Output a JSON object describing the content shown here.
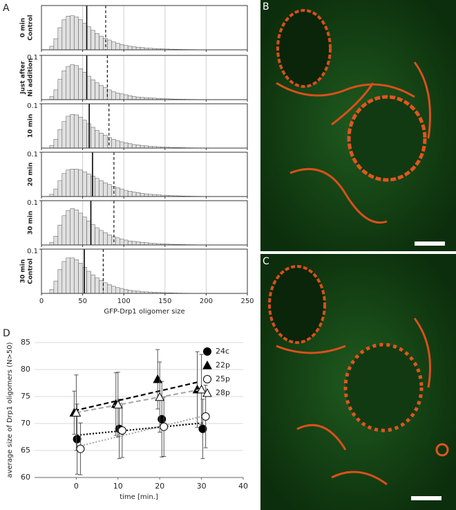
{
  "chart_data": [
    {
      "type": "histogram",
      "panel": "A",
      "ylabel": [
        "0 min",
        "Control"
      ],
      "bins": [
        10,
        15,
        20,
        25,
        30,
        35,
        40,
        45,
        50,
        55,
        60,
        65,
        70,
        75,
        80,
        85,
        90,
        95,
        100,
        105,
        110,
        115,
        120,
        125,
        130,
        135,
        140,
        145,
        150,
        155,
        160,
        165,
        170,
        175,
        180,
        185,
        190,
        195,
        200
      ],
      "counts": [
        0.008,
        0.025,
        0.05,
        0.068,
        0.076,
        0.077,
        0.074,
        0.068,
        0.06,
        0.052,
        0.044,
        0.037,
        0.031,
        0.026,
        0.022,
        0.018,
        0.015,
        0.012,
        0.01,
        0.008,
        0.007,
        0.006,
        0.005,
        0.004,
        0.0035,
        0.003,
        0.0025,
        0.002,
        0.0017,
        0.0014,
        0.0012,
        0.001,
        0.0008,
        0.0007,
        0.0006,
        0.0005,
        0.0004,
        0.0003
      ],
      "color": "#e0e0e0",
      "xlim": [
        0,
        250
      ],
      "xticks": [
        0,
        50,
        100,
        150,
        200,
        250
      ],
      "ylim": [
        0,
        0.1
      ],
      "grid": true,
      "vlines": [
        {
          "value": 55,
          "style": "solid"
        },
        {
          "value": 78,
          "style": "dashed"
        }
      ]
    },
    {
      "type": "histogram",
      "ylabel": [
        "Just after",
        "Ni addition"
      ],
      "bins": [
        10,
        15,
        20,
        25,
        30,
        35,
        40,
        45,
        50,
        55,
        60,
        65,
        70,
        75,
        80,
        85,
        90,
        95,
        100,
        105,
        110,
        115,
        120,
        125,
        130,
        135,
        140,
        145,
        150,
        155,
        160,
        165,
        170,
        175,
        180,
        185,
        190,
        195,
        200
      ],
      "counts": [
        0.007,
        0.022,
        0.046,
        0.065,
        0.075,
        0.079,
        0.077,
        0.07,
        0.062,
        0.053,
        0.045,
        0.038,
        0.032,
        0.027,
        0.022,
        0.018,
        0.015,
        0.013,
        0.011,
        0.009,
        0.007,
        0.006,
        0.005,
        0.0045,
        0.004,
        0.0033,
        0.0027,
        0.0022,
        0.0018,
        0.0015,
        0.0012,
        0.001,
        0.0009,
        0.0007,
        0.0006,
        0.0005,
        0.0004,
        0.0003
      ],
      "color": "#e0e0e0",
      "xlim": [
        0,
        250
      ],
      "xticks": [
        0,
        50,
        100,
        150,
        200,
        250
      ],
      "ylim": [
        0,
        0.1
      ],
      "yticks": [
        0.1
      ],
      "grid": true,
      "vlines": [
        {
          "value": 55,
          "style": "solid"
        },
        {
          "value": 80,
          "style": "dashed"
        }
      ]
    },
    {
      "type": "histogram",
      "ylabel": [
        "10 min"
      ],
      "bins": [
        10,
        15,
        20,
        25,
        30,
        35,
        40,
        45,
        50,
        55,
        60,
        65,
        70,
        75,
        80,
        85,
        90,
        95,
        100,
        105,
        110,
        115,
        120,
        125,
        130,
        135,
        140,
        145,
        150,
        155,
        160,
        165,
        170,
        175,
        180,
        185,
        190,
        195,
        200
      ],
      "counts": [
        0.006,
        0.02,
        0.042,
        0.06,
        0.072,
        0.076,
        0.075,
        0.07,
        0.063,
        0.055,
        0.047,
        0.04,
        0.034,
        0.029,
        0.024,
        0.02,
        0.017,
        0.014,
        0.012,
        0.01,
        0.008,
        0.007,
        0.006,
        0.005,
        0.004,
        0.0035,
        0.003,
        0.0025,
        0.002,
        0.0016,
        0.0013,
        0.0011,
        0.0009,
        0.0007,
        0.0006,
        0.0005,
        0.0004,
        0.0003
      ],
      "color": "#e0e0e0",
      "xlim": [
        0,
        250
      ],
      "xticks": [
        0,
        50,
        100,
        150,
        200,
        250
      ],
      "ylim": [
        0,
        0.1
      ],
      "yticks": [
        0.1
      ],
      "grid": true,
      "vlines": [
        {
          "value": 58,
          "style": "solid"
        },
        {
          "value": 82,
          "style": "dashed"
        }
      ]
    },
    {
      "type": "histogram",
      "ylabel": [
        "20 min"
      ],
      "bins": [
        10,
        15,
        20,
        25,
        30,
        35,
        40,
        45,
        50,
        55,
        60,
        65,
        70,
        75,
        80,
        85,
        90,
        95,
        100,
        105,
        110,
        115,
        120,
        125,
        130,
        135,
        140,
        145,
        150,
        155,
        160,
        165,
        170,
        175,
        180,
        185,
        190,
        195,
        200
      ],
      "counts": [
        0.005,
        0.017,
        0.036,
        0.052,
        0.06,
        0.062,
        0.062,
        0.06,
        0.056,
        0.051,
        0.046,
        0.041,
        0.036,
        0.031,
        0.027,
        0.023,
        0.02,
        0.017,
        0.014,
        0.012,
        0.01,
        0.009,
        0.007,
        0.006,
        0.005,
        0.0045,
        0.0038,
        0.003,
        0.0025,
        0.002,
        0.0017,
        0.0014,
        0.0011,
        0.0009,
        0.0007,
        0.0006,
        0.0005,
        0.0004
      ],
      "color": "#e0e0e0",
      "xlim": [
        0,
        250
      ],
      "xticks": [
        0,
        50,
        100,
        150,
        200,
        250
      ],
      "ylim": [
        0,
        0.1
      ],
      "yticks": [
        0.1
      ],
      "grid": true,
      "vlines": [
        {
          "value": 62,
          "style": "solid"
        },
        {
          "value": 88,
          "style": "dashed"
        }
      ]
    },
    {
      "type": "histogram",
      "ylabel": [
        "30 min"
      ],
      "bins": [
        10,
        15,
        20,
        25,
        30,
        35,
        40,
        45,
        50,
        55,
        60,
        65,
        70,
        75,
        80,
        85,
        90,
        95,
        100,
        105,
        110,
        115,
        120,
        125,
        130,
        135,
        140,
        145,
        150,
        155,
        160,
        165,
        170,
        175,
        180,
        185,
        190,
        195,
        200
      ],
      "counts": [
        0.006,
        0.02,
        0.045,
        0.066,
        0.078,
        0.082,
        0.079,
        0.072,
        0.063,
        0.054,
        0.046,
        0.039,
        0.033,
        0.028,
        0.023,
        0.019,
        0.016,
        0.013,
        0.011,
        0.009,
        0.008,
        0.007,
        0.006,
        0.005,
        0.004,
        0.0035,
        0.003,
        0.0025,
        0.002,
        0.0016,
        0.0013,
        0.0011,
        0.0009,
        0.0007,
        0.0006,
        0.0005,
        0.0004,
        0.0003
      ],
      "color": "#e0e0e0",
      "xlim": [
        0,
        250
      ],
      "xticks": [
        0,
        50,
        100,
        150,
        200,
        250
      ],
      "ylim": [
        0,
        0.1
      ],
      "yticks": [
        0.1
      ],
      "grid": true,
      "vlines": [
        {
          "value": 60,
          "style": "solid"
        },
        {
          "value": 88,
          "style": "dashed"
        }
      ]
    },
    {
      "type": "histogram",
      "ylabel": [
        "30 min",
        "Control"
      ],
      "xlabel": "GFP-Drp1 oligomer size",
      "show_xtick_labels": true,
      "bins": [
        10,
        15,
        20,
        25,
        30,
        35,
        40,
        45,
        50,
        55,
        60,
        65,
        70,
        75,
        80,
        85,
        90,
        95,
        100,
        105,
        110,
        115,
        120,
        125,
        130,
        135,
        140,
        145,
        150,
        155,
        160,
        165,
        170,
        175,
        180,
        185,
        190,
        195,
        200
      ],
      "counts": [
        0.009,
        0.028,
        0.054,
        0.072,
        0.08,
        0.08,
        0.076,
        0.068,
        0.059,
        0.05,
        0.042,
        0.035,
        0.029,
        0.024,
        0.02,
        0.016,
        0.013,
        0.011,
        0.009,
        0.007,
        0.006,
        0.005,
        0.004,
        0.0035,
        0.003,
        0.0025,
        0.002,
        0.0016,
        0.0013,
        0.0011,
        0.0009,
        0.0007,
        0.0006,
        0.0005,
        0.0004,
        0.0003,
        0.0002,
        0.0002
      ],
      "color": "#e0e0e0",
      "xlim": [
        0,
        250
      ],
      "xticks": [
        0,
        50,
        100,
        150,
        200,
        250
      ],
      "ylim": [
        0,
        0.1
      ],
      "yticks": [
        0.1
      ],
      "grid": true,
      "vlines": [
        {
          "value": 52,
          "style": "solid"
        },
        {
          "value": 75,
          "style": "dashed"
        }
      ]
    },
    {
      "type": "scatter",
      "panel": "D",
      "xlabel": "time [min.]",
      "ylabel": "average size of Drp1 oligomers (N>50)",
      "xlim": [
        -10,
        40
      ],
      "xticks": [
        0,
        10,
        20,
        30,
        40
      ],
      "ylim": [
        60,
        85
      ],
      "yticks": [
        60,
        65,
        70,
        75,
        80,
        85
      ],
      "grid": true,
      "legend": "upper right",
      "series": [
        {
          "name": "24c",
          "marker": "circle",
          "filled": true,
          "color": "#000000",
          "trend": "dotted",
          "trend_color": "#000000",
          "x": [
            0.2,
            10.3,
            20.5,
            30.3
          ],
          "values": [
            67.1,
            69.0,
            70.8,
            69.0
          ],
          "errors": [
            6.5,
            5.5,
            7.0,
            5.5
          ]
        },
        {
          "name": "22p",
          "marker": "triangle",
          "filled": true,
          "color": "#000000",
          "trend": "dashed",
          "trend_color": "#000000",
          "x": [
            -0.5,
            9.5,
            19.5,
            29.0
          ],
          "values": [
            72.0,
            73.6,
            78.2,
            76.3
          ],
          "errors": [
            4.0,
            5.8,
            5.5,
            7.0
          ]
        },
        {
          "name": "25p",
          "marker": "circle",
          "filled": false,
          "color": "#000000",
          "trend": "dotted",
          "trend_color": "#aaaaaa",
          "x": [
            1.0,
            11.0,
            21.0,
            31.0
          ],
          "values": [
            65.3,
            68.7,
            69.4,
            71.3
          ],
          "errors": [
            4.8,
            5.0,
            5.5,
            5.8
          ]
        },
        {
          "name": "28p",
          "marker": "triangle",
          "filled": false,
          "color": "#000000",
          "trend": "dashed",
          "trend_color": "#aaaaaa",
          "x": [
            0.0,
            10.0,
            20.0,
            30.0
          ],
          "values": [
            72.0,
            73.5,
            74.9,
            76.3
          ],
          "errors": [
            7.0,
            6.0,
            6.5,
            6.5
          ]
        }
      ]
    }
  ],
  "images": [
    {
      "panel": "B"
    },
    {
      "panel": "C"
    }
  ]
}
